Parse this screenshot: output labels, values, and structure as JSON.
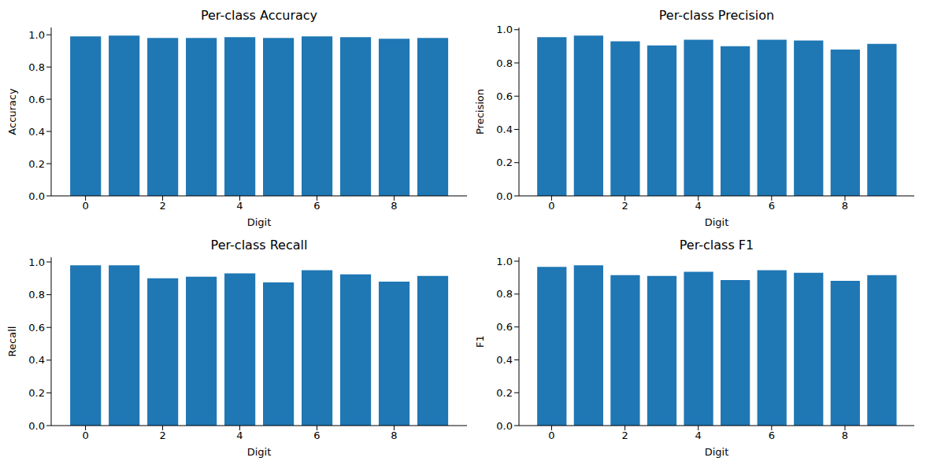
{
  "chart_data": [
    {
      "type": "bar",
      "title": "Per-class Accuracy",
      "x_label": "Digit",
      "y_label": "Accuracy",
      "color": "#1f77b4",
      "x": [
        0,
        1,
        2,
        3,
        4,
        5,
        6,
        7,
        8,
        9
      ],
      "values": [
        0.99,
        0.995,
        0.98,
        0.98,
        0.985,
        0.98,
        0.99,
        0.985,
        0.975,
        0.98
      ],
      "xlim": [
        -0.89,
        9.89
      ],
      "xticks": [
        0,
        2,
        4,
        6,
        8
      ],
      "ylim": [
        0,
        1.045
      ],
      "yticks": [
        {
          "value": 0,
          "label": "0.0"
        },
        0.2,
        0.4,
        0.6,
        0.8,
        {
          "value": 1,
          "label": "1.0"
        }
      ]
    },
    {
      "type": "bar",
      "title": "Per-class Precision",
      "x_label": "Digit",
      "y_label": "Precision",
      "color": "#1f77b4",
      "x": [
        0,
        1,
        2,
        3,
        4,
        5,
        6,
        7,
        8,
        9
      ],
      "values": [
        0.955,
        0.965,
        0.93,
        0.905,
        0.94,
        0.9,
        0.94,
        0.935,
        0.88,
        0.915
      ],
      "xlim": [
        -0.89,
        9.89
      ],
      "xticks": [
        0,
        2,
        4,
        6,
        8
      ],
      "ylim": [
        0,
        1.013
      ],
      "yticks": [
        {
          "value": 0,
          "label": "0.0"
        },
        0.2,
        0.4,
        0.6,
        0.8,
        {
          "value": 1,
          "label": "1.0"
        }
      ]
    },
    {
      "type": "bar",
      "title": "Per-class Recall",
      "x_label": "Digit",
      "y_label": "Recall",
      "color": "#1f77b4",
      "x": [
        0,
        1,
        2,
        3,
        4,
        5,
        6,
        7,
        8,
        9
      ],
      "values": [
        0.98,
        0.98,
        0.9,
        0.91,
        0.93,
        0.875,
        0.95,
        0.925,
        0.88,
        0.915
      ],
      "xlim": [
        -0.89,
        9.89
      ],
      "xticks": [
        0,
        2,
        4,
        6,
        8
      ],
      "ylim": [
        0,
        1.029
      ],
      "yticks": [
        {
          "value": 0,
          "label": "0.0"
        },
        0.2,
        0.4,
        0.6,
        0.8,
        {
          "value": 1,
          "label": "1.0"
        }
      ]
    },
    {
      "type": "bar",
      "title": "Per-class F1",
      "x_label": "Digit",
      "y_label": "F1",
      "color": "#1f77b4",
      "x": [
        0,
        1,
        2,
        3,
        4,
        5,
        6,
        7,
        8,
        9
      ],
      "values": [
        0.965,
        0.975,
        0.915,
        0.91,
        0.935,
        0.885,
        0.945,
        0.93,
        0.88,
        0.915
      ],
      "xlim": [
        -0.89,
        9.89
      ],
      "xticks": [
        0,
        2,
        4,
        6,
        8
      ],
      "ylim": [
        0,
        1.024
      ],
      "yticks": [
        {
          "value": 0,
          "label": "0.0"
        },
        0.2,
        0.4,
        0.6,
        0.8,
        {
          "value": 1,
          "label": "1.0"
        }
      ]
    }
  ]
}
